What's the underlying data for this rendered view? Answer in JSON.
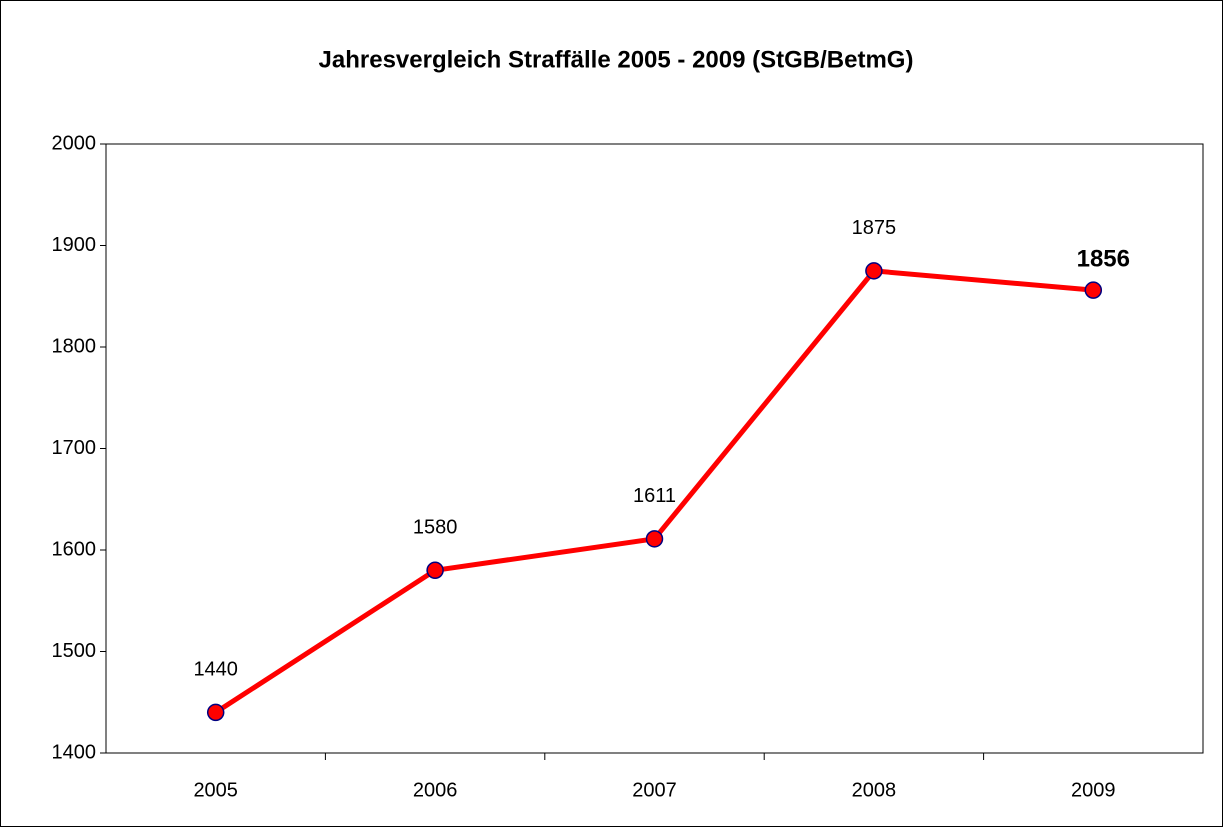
{
  "chart_data": {
    "type": "line",
    "title": "Jahresvergleich Straffälle 2005 - 2009 (StGB/BetmG)",
    "categories": [
      "2005",
      "2006",
      "2007",
      "2008",
      "2009"
    ],
    "series": [
      {
        "color": "#ff0000",
        "values": [
          1440,
          1580,
          1611,
          1875,
          1856
        ]
      }
    ],
    "ylim": [
      1400,
      2000
    ],
    "yticks": [
      1400,
      1500,
      1600,
      1700,
      1800,
      1900,
      2000
    ],
    "grid": false
  }
}
